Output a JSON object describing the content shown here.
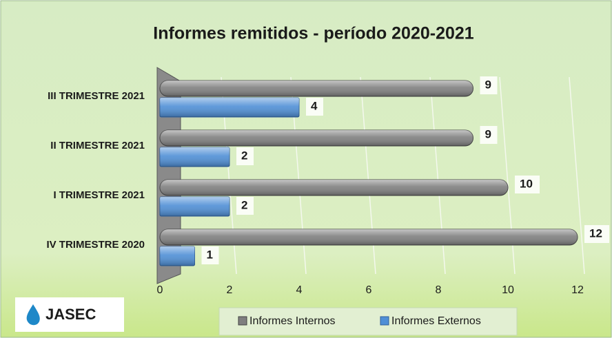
{
  "chart_data": {
    "type": "bar",
    "orientation": "horizontal",
    "title": "Informes remitidos - período 2020-2021",
    "categories": [
      "III TRIMESTRE 2021",
      "II TRIMESTRE 2021",
      "I TRIMESTRE 2021",
      "IV TRIMESTRE 2020"
    ],
    "series": [
      {
        "name": "Informes Internos",
        "color": "#7f7f7f",
        "values": [
          9,
          9,
          10,
          12
        ]
      },
      {
        "name": "Informes Externos",
        "color": "#4f8fd6",
        "values": [
          4,
          2,
          2,
          1
        ]
      }
    ],
    "xlim": [
      0,
      12
    ],
    "xticks": [
      0,
      2,
      4,
      6,
      8,
      10,
      12
    ],
    "grid": true,
    "legend": "bottom"
  },
  "logo": "JASEC"
}
